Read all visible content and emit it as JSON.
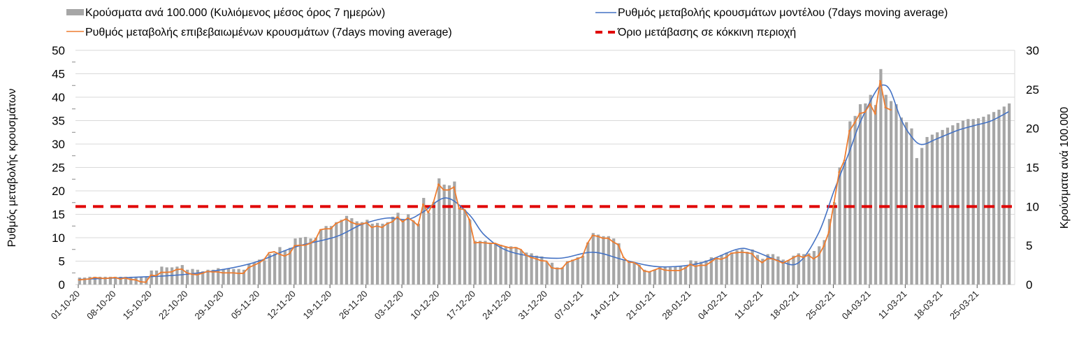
{
  "chart_data": {
    "type": "bar+line",
    "legend": {
      "bars": "Κρούσματα ανά 100.000 (Κυλιόμενος μέσος όρος 7 ημερών)",
      "model": "Ρυθμός μεταβολής κρουσμάτων μοντέλου (7days moving average)",
      "confirmed": "Ρυθμός μεταβολής επιβεβαιωμένων κρουσμάτων (7days moving average)",
      "threshold": "Όριο μετάβασης σε κόκκινη περιοχή"
    },
    "ylabel_left": "Ρυθμός μεταβολής κρουσμάτων",
    "ylabel_right": "Κρούσματα ανά 100.000",
    "ylim_left": [
      0,
      50
    ],
    "ylim_right": [
      0,
      30
    ],
    "yticks_left": [
      "0",
      "5",
      "10",
      "15",
      "20",
      "25",
      "30",
      "35",
      "40",
      "45",
      "50"
    ],
    "yticks_right": [
      "0",
      "5",
      "10",
      "15",
      "20",
      "25",
      "30"
    ],
    "x_start": "01-10-20",
    "x_end": "31-03-21",
    "xtick_labels": [
      "01-10-20",
      "08-10-20",
      "15-10-20",
      "22-10-20",
      "29-10-20",
      "05-11-20",
      "12-11-20",
      "19-11-20",
      "26-11-20",
      "03-12-20",
      "10-12-20",
      "17-12-20",
      "24-12-20",
      "31-12-20",
      "07-01-21",
      "14-01-21",
      "21-01-21",
      "28-01-21",
      "04-02-21",
      "11-02-21",
      "18-02-21",
      "25-02-21",
      "04-03-21",
      "11-03-21",
      "18-03-21",
      "25-03-21"
    ],
    "xtick_interval_days": 7,
    "grid": true,
    "legend_placement": "top",
    "colors": {
      "bars": "#a6a6a6",
      "model": "#4472c4",
      "confirmed": "#ed7d31",
      "threshold": "#e00000"
    },
    "threshold_right_axis": 10,
    "bars_per_100k_daily_right_axis": [
      0.9,
      0.9,
      1.0,
      1.0,
      1.0,
      1.0,
      1.0,
      1.0,
      1.0,
      1.0,
      1.0,
      1.0,
      1.0,
      1.0,
      1.8,
      1.8,
      2.3,
      2.2,
      2.2,
      2.3,
      2.5,
      1.9,
      2.0,
      1.9,
      1.7,
      1.9,
      1.9,
      2.1,
      2.0,
      2.1,
      2.0,
      2.0,
      1.9,
      2.6,
      2.8,
      3.2,
      3.1,
      3.9,
      4.0,
      4.8,
      4.4,
      4.7,
      5.9,
      6.0,
      6.1,
      5.9,
      6.0,
      7.0,
      7.5,
      7.5,
      8.0,
      8.3,
      8.8,
      8.5,
      8.1,
      8.0,
      8.3,
      7.8,
      7.9,
      7.8,
      8.0,
      8.7,
      9.2,
      8.3,
      9.0,
      8.2,
      7.8,
      11.1,
      9.2,
      10.6,
      13.6,
      12.8,
      12.7,
      13.2,
      9.8,
      9.6,
      8.3,
      5.6,
      5.6,
      5.6,
      5.3,
      5.3,
      5.1,
      4.8,
      4.9,
      4.8,
      4.4,
      4.1,
      4.0,
      3.7,
      3.6,
      2.9,
      2.8,
      2.2,
      2.2,
      3.0,
      3.2,
      3.5,
      3.7,
      5.4,
      6.6,
      6.4,
      6.2,
      6.2,
      5.9,
      5.3,
      3.2,
      2.9,
      2.8,
      2.5,
      1.9,
      1.7,
      1.9,
      2.2,
      2.3,
      2.2,
      2.3,
      2.3,
      2.3,
      3.1,
      3.0,
      2.9,
      3.1,
      3.5,
      3.5,
      3.8,
      4.1,
      4.1,
      4.4,
      4.5,
      4.2,
      4.5,
      3.8,
      3.3,
      3.9,
      3.9,
      3.6,
      3.2,
      3.1,
      3.7,
      4.0,
      3.9,
      4.0,
      4.3,
      4.9,
      5.7,
      8.4,
      10.5,
      15.0,
      15.7,
      20.9,
      21.6,
      23.1,
      23.2,
      24.3,
      23.0,
      27.6,
      24.3,
      23.5,
      23.1,
      21.4,
      20.8,
      20.0,
      16.2,
      17.5,
      18.9,
      19.2,
      19.5,
      19.8,
      20.1,
      20.4,
      20.7,
      21.0,
      21.2,
      21.2,
      21.3,
      21.5,
      21.8,
      22.1,
      22.4,
      22.8,
      23.2
    ],
    "confirmed_rate_daily_left_axis": [
      1.0,
      1.1,
      1.2,
      1.5,
      1.4,
      1.3,
      1.4,
      1.5,
      1.2,
      1.4,
      1.1,
      1.0,
      0.6,
      0.5,
      2.0,
      1.9,
      2.6,
      2.6,
      2.7,
      3.2,
      3.3,
      2.5,
      2.2,
      2.1,
      2.4,
      2.8,
      2.7,
      2.7,
      2.5,
      2.5,
      2.5,
      2.4,
      2.4,
      3.6,
      4.1,
      4.6,
      5.3,
      6.8,
      7.0,
      6.5,
      6.1,
      6.6,
      8.3,
      8.4,
      8.4,
      8.8,
      9.5,
      11.7,
      11.9,
      11.9,
      13.0,
      13.5,
      14.0,
      13.3,
      12.9,
      12.9,
      13.2,
      12.2,
      12.5,
      12.2,
      13.0,
      13.4,
      14.4,
      13.4,
      14.2,
      13.6,
      12.6,
      17.1,
      15.4,
      17.5,
      21.4,
      20.2,
      20.2,
      20.8,
      16.2,
      16.0,
      13.9,
      8.9,
      9.0,
      8.9,
      8.8,
      8.8,
      8.4,
      8.1,
      7.8,
      7.9,
      7.5,
      6.3,
      5.8,
      5.5,
      5.1,
      5.0,
      3.6,
      3.4,
      3.4,
      4.7,
      5.1,
      5.5,
      5.9,
      8.8,
      10.5,
      10.3,
      9.9,
      9.9,
      9.1,
      8.5,
      5.8,
      4.8,
      4.7,
      4.1,
      2.9,
      2.7,
      3.1,
      3.5,
      3.1,
      3.0,
      3.0,
      3.0,
      3.5,
      4.3,
      3.9,
      4.1,
      4.1,
      4.8,
      5.6,
      5.4,
      5.8,
      6.7,
      6.8,
      6.9,
      6.8,
      6.6,
      5.4,
      4.7,
      5.5,
      5.5,
      5.1,
      4.6,
      5.1,
      5.7,
      6.2,
      5.8,
      6.3,
      5.5,
      6.2,
      8.2,
      11.2,
      17.5,
      24.0,
      26.5,
      32.8,
      34.5,
      36.5,
      36.8,
      38.5,
      36.5,
      43.5,
      37.8,
      37.3
    ],
    "model_rate_points_left_axis": [
      [
        0,
        1.1
      ],
      [
        14,
        1.7
      ],
      [
        21,
        2.2
      ],
      [
        29,
        3.4
      ],
      [
        35,
        5.0
      ],
      [
        42,
        8.0
      ],
      [
        50,
        10.2
      ],
      [
        55,
        12.8
      ],
      [
        60,
        14.2
      ],
      [
        64,
        13.9
      ],
      [
        67,
        15.5
      ],
      [
        71.5,
        18.5
      ],
      [
        76,
        14.9
      ],
      [
        79,
        10.5
      ],
      [
        84,
        7.0
      ],
      [
        93,
        5.6
      ],
      [
        100,
        6.9
      ],
      [
        106,
        5.3
      ],
      [
        113,
        3.8
      ],
      [
        121,
        4.6
      ],
      [
        128,
        7.5
      ],
      [
        131,
        7.3
      ],
      [
        136,
        5.2
      ],
      [
        140,
        4.6
      ],
      [
        144,
        11.0
      ],
      [
        147,
        20.0
      ],
      [
        150,
        28.4
      ],
      [
        152,
        34.4
      ],
      [
        155,
        41.0
      ],
      [
        156.5,
        42.6
      ],
      [
        158,
        41.3
      ],
      [
        160,
        35.4
      ],
      [
        162,
        31.7
      ],
      [
        164,
        29.9
      ],
      [
        167,
        31.1
      ],
      [
        171,
        32.9
      ],
      [
        174.5,
        34.0
      ],
      [
        177.5,
        34.9
      ],
      [
        181,
        36.9
      ]
    ]
  }
}
